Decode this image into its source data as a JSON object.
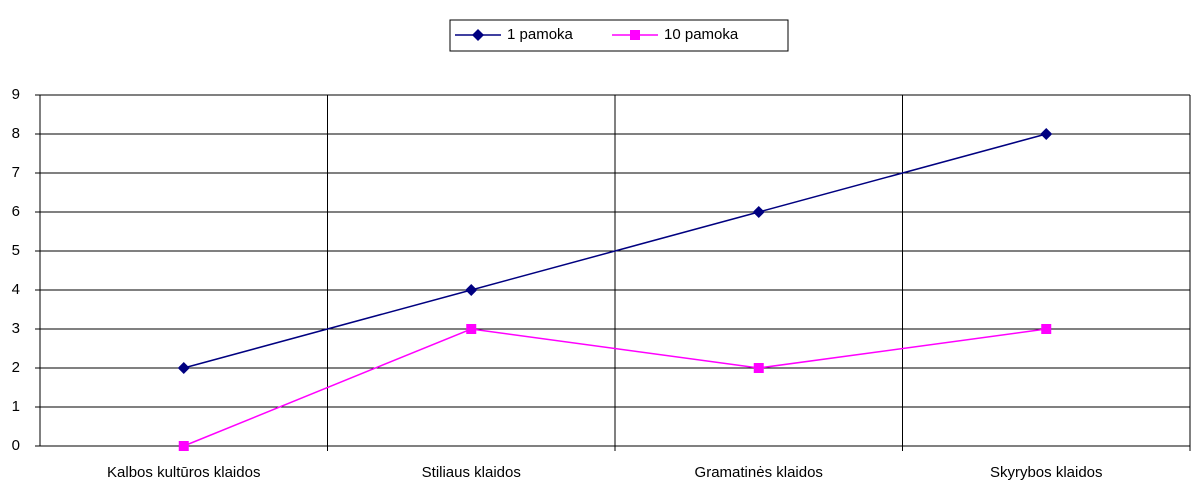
{
  "chart_data": {
    "type": "line",
    "categories": [
      "Kalbos kultūros klaidos",
      "Stiliaus klaidos",
      "Gramatinės klaidos",
      "Skyrybos klaidos"
    ],
    "series": [
      {
        "name": "1 pamoka",
        "color": "#000080",
        "marker": "diamond",
        "values": [
          2,
          4,
          6,
          8
        ]
      },
      {
        "name": "10 pamoka",
        "color": "#ff00ff",
        "marker": "square",
        "values": [
          0,
          3,
          2,
          3
        ]
      }
    ],
    "ylim": [
      0,
      9
    ],
    "yticks": [
      0,
      1,
      2,
      3,
      4,
      5,
      6,
      7,
      8,
      9
    ],
    "grid": true,
    "legend": "top"
  }
}
